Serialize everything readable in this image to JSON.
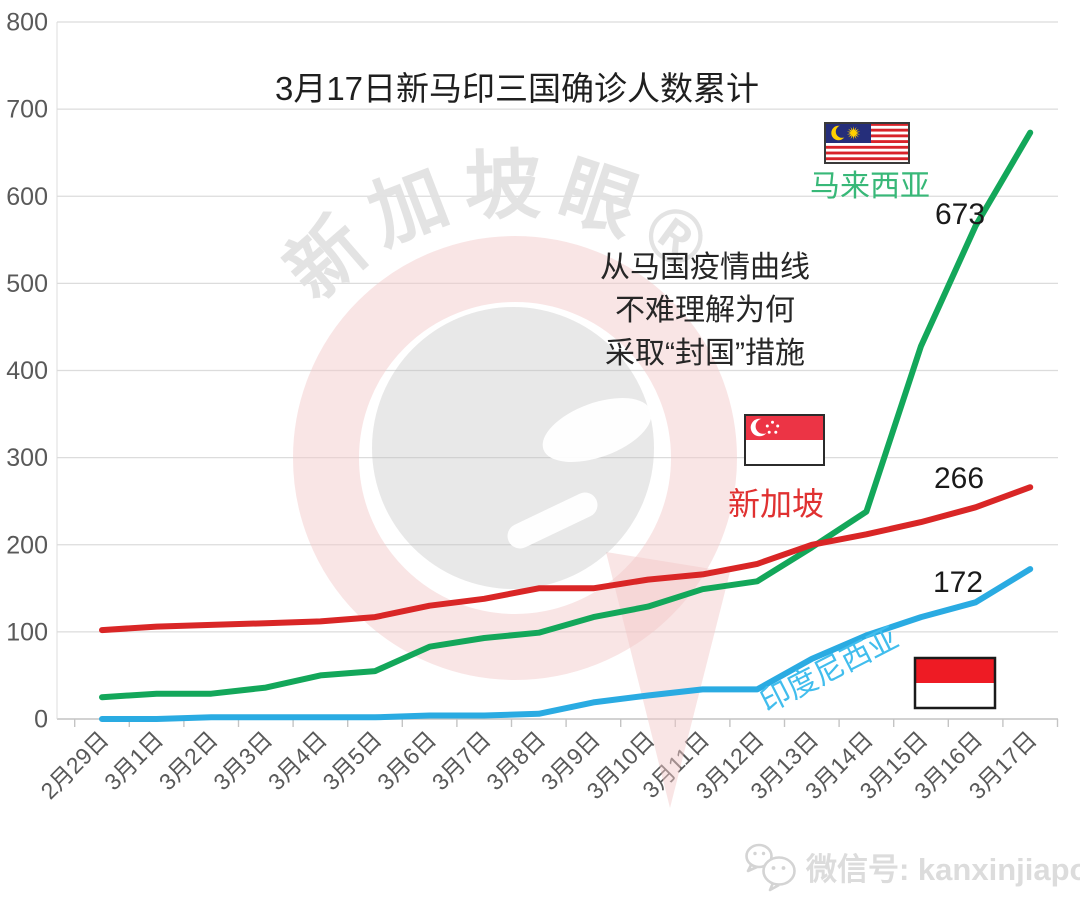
{
  "title": "3月17日新马印三国确诊人数累计",
  "annotation": {
    "lines": [
      "从马国疫情曲线",
      "不难理解为何",
      "采取“封国”措施"
    ]
  },
  "watermark": {
    "arc_text": "新加坡眼®"
  },
  "footer": {
    "wechat_label": "微信号: kanxinjiapo"
  },
  "colors": {
    "malaysia_line": "#13a75a",
    "malaysia_label": "#38b878",
    "singapore_line": "#d92626",
    "singapore_label": "#e03131",
    "indonesia_line": "#2aabe2",
    "indonesia_label": "#41bded",
    "grid": "#dcdcdc",
    "axis": "#c4c4c4",
    "tick_text": "#595959",
    "value_text": "#1a1a1a"
  },
  "chart_data": {
    "type": "line",
    "title": "3月17日新马印三国确诊人数累计",
    "categories": [
      "2月29日",
      "3月1日",
      "3月2日",
      "3月3日",
      "3月4日",
      "3月5日",
      "3月6日",
      "3月7日",
      "3月8日",
      "3月9日",
      "3月10日",
      "3月11日",
      "3月12日",
      "3月13日",
      "3月14日",
      "3月15日",
      "3月16日",
      "3月17日"
    ],
    "xlabel": "",
    "ylabel": "",
    "ylim": [
      0,
      800
    ],
    "y_ticks": [
      0,
      100,
      200,
      300,
      400,
      500,
      600,
      700,
      800
    ],
    "grid": true,
    "legend_position": "inline-labels",
    "series": [
      {
        "id": "malaysia",
        "name": "马来西亚",
        "color": "#13a75a",
        "end_label": "673",
        "values": [
          25,
          29,
          29,
          36,
          50,
          55,
          83,
          93,
          99,
          117,
          129,
          149,
          158,
          197,
          238,
          428,
          566,
          673
        ]
      },
      {
        "id": "singapore",
        "name": "新加坡",
        "color": "#d92626",
        "end_label": "266",
        "values": [
          102,
          106,
          108,
          110,
          112,
          117,
          130,
          138,
          150,
          150,
          160,
          166,
          178,
          200,
          212,
          226,
          243,
          266
        ]
      },
      {
        "id": "indonesia",
        "name": "印度尼西亚",
        "color": "#2aabe2",
        "end_label": "172",
        "values": [
          0,
          0,
          2,
          2,
          2,
          2,
          4,
          4,
          6,
          19,
          27,
          34,
          34,
          69,
          96,
          117,
          134,
          172
        ]
      }
    ]
  }
}
